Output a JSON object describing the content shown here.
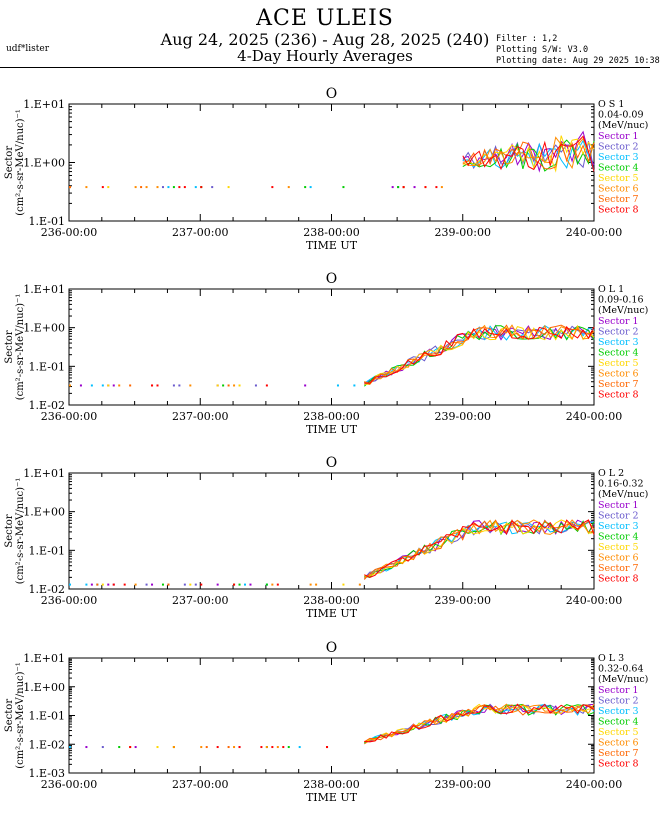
{
  "header": {
    "title": "ACE ULEIS",
    "date_range": "Aug 24, 2025 (236) - Aug 28, 2025 (240)",
    "subtitle": "4-Day Hourly Averages",
    "user": "udf*lister",
    "filter": "Filter : 1,2",
    "software": "Plotting S/W: V3.0",
    "plot_date": "Plotting date: Aug 29 2025 10:38"
  },
  "colors": {
    "sectors": [
      "#9900cc",
      "#6a5acd",
      "#00bfff",
      "#00cc00",
      "#ffd700",
      "#ff8c00",
      "#ff6600",
      "#ff0000"
    ],
    "axis": "#000000"
  },
  "chart_data": [
    {
      "type": "line",
      "title": "O",
      "legend_title": [
        "O S 1",
        "0.04-0.09",
        "(MeV/nuc)"
      ],
      "ylabel": "Sector",
      "ylabel_units": "(cm²-s-sr-MeV/nuc)⁻¹",
      "xlabel": "TIME UT",
      "scale": "log",
      "ylim": [
        0.1,
        10
      ],
      "y_ticks": [
        "1.E-01",
        "1.E+00",
        "1.E+01"
      ],
      "x_ticks": [
        "236-00:00",
        "237-00:00",
        "238-00:00",
        "239-00:00",
        "240-00:00"
      ],
      "xlim": [
        236,
        240
      ],
      "series": [
        {
          "name": "Sector 1",
          "start": 239.0,
          "base": 1.1,
          "peak": 1.5,
          "spread": 0.22,
          "floor": 0.38
        },
        {
          "name": "Sector 2",
          "start": 239.0,
          "base": 1.1,
          "peak": 1.5,
          "spread": 0.22,
          "floor": 0.38
        },
        {
          "name": "Sector 3",
          "start": 239.0,
          "base": 1.1,
          "peak": 1.5,
          "spread": 0.22,
          "floor": 0.38
        },
        {
          "name": "Sector 4",
          "start": 239.0,
          "base": 1.1,
          "peak": 1.5,
          "spread": 0.22,
          "floor": 0.38
        },
        {
          "name": "Sector 5",
          "start": 239.0,
          "base": 1.1,
          "peak": 1.5,
          "spread": 0.22,
          "floor": 0.38
        },
        {
          "name": "Sector 6",
          "start": 239.0,
          "base": 1.1,
          "peak": 1.5,
          "spread": 0.22,
          "floor": 0.38
        },
        {
          "name": "Sector 7",
          "start": 239.0,
          "base": 1.1,
          "peak": 1.5,
          "spread": 0.22,
          "floor": 0.38
        },
        {
          "name": "Sector 8",
          "start": 239.0,
          "base": 1.1,
          "peak": 1.5,
          "spread": 0.22,
          "floor": 0.38
        }
      ]
    },
    {
      "type": "line",
      "title": "O",
      "legend_title": [
        "O L 1",
        "0.09-0.16",
        "(MeV/nuc)"
      ],
      "ylabel": "Sector",
      "ylabel_units": "(cm²-s-sr-MeV/nuc)⁻¹",
      "xlabel": "TIME UT",
      "scale": "log",
      "ylim": [
        0.01,
        10
      ],
      "y_ticks": [
        "1.E-02",
        "1.E-01",
        "1.E+00",
        "1.E+01"
      ],
      "x_ticks": [
        "236-00:00",
        "237-00:00",
        "238-00:00",
        "239-00:00",
        "240-00:00"
      ],
      "xlim": [
        236,
        240
      ],
      "series": [
        {
          "name": "Sector 1",
          "start": 238.25,
          "base": 0.035,
          "peak": 0.75,
          "spread": 0.12,
          "floor": 0.032
        },
        {
          "name": "Sector 2",
          "start": 238.25,
          "base": 0.035,
          "peak": 0.75,
          "spread": 0.12,
          "floor": 0.032
        },
        {
          "name": "Sector 3",
          "start": 238.25,
          "base": 0.035,
          "peak": 0.75,
          "spread": 0.12,
          "floor": 0.032
        },
        {
          "name": "Sector 4",
          "start": 238.25,
          "base": 0.035,
          "peak": 0.75,
          "spread": 0.12,
          "floor": 0.032
        },
        {
          "name": "Sector 5",
          "start": 238.25,
          "base": 0.035,
          "peak": 0.75,
          "spread": 0.12,
          "floor": 0.032
        },
        {
          "name": "Sector 6",
          "start": 238.25,
          "base": 0.035,
          "peak": 0.75,
          "spread": 0.12,
          "floor": 0.032
        },
        {
          "name": "Sector 7",
          "start": 238.25,
          "base": 0.035,
          "peak": 0.75,
          "spread": 0.12,
          "floor": 0.032
        },
        {
          "name": "Sector 8",
          "start": 238.25,
          "base": 0.035,
          "peak": 0.75,
          "spread": 0.12,
          "floor": 0.032
        }
      ]
    },
    {
      "type": "line",
      "title": "O",
      "legend_title": [
        "O L 2",
        "0.16-0.32",
        "(MeV/nuc)"
      ],
      "ylabel": "Sector",
      "ylabel_units": "(cm²-s-sr-MeV/nuc)⁻¹",
      "xlabel": "TIME UT",
      "scale": "log",
      "ylim": [
        0.01,
        10
      ],
      "y_ticks": [
        "1.E-02",
        "1.E-01",
        "1.E+00",
        "1.E+01"
      ],
      "x_ticks": [
        "236-00:00",
        "237-00:00",
        "238-00:00",
        "239-00:00",
        "240-00:00"
      ],
      "xlim": [
        236,
        240
      ],
      "series": [
        {
          "name": "Sector 1",
          "start": 238.25,
          "base": 0.02,
          "peak": 0.4,
          "spread": 0.12,
          "floor": 0.013
        },
        {
          "name": "Sector 2",
          "start": 238.25,
          "base": 0.02,
          "peak": 0.4,
          "spread": 0.12,
          "floor": 0.013
        },
        {
          "name": "Sector 3",
          "start": 238.25,
          "base": 0.02,
          "peak": 0.4,
          "spread": 0.12,
          "floor": 0.013
        },
        {
          "name": "Sector 4",
          "start": 238.25,
          "base": 0.02,
          "peak": 0.4,
          "spread": 0.12,
          "floor": 0.013
        },
        {
          "name": "Sector 5",
          "start": 238.25,
          "base": 0.02,
          "peak": 0.4,
          "spread": 0.12,
          "floor": 0.013
        },
        {
          "name": "Sector 6",
          "start": 238.25,
          "base": 0.02,
          "peak": 0.4,
          "spread": 0.12,
          "floor": 0.013
        },
        {
          "name": "Sector 7",
          "start": 238.25,
          "base": 0.02,
          "peak": 0.4,
          "spread": 0.12,
          "floor": 0.013
        },
        {
          "name": "Sector 8",
          "start": 238.25,
          "base": 0.02,
          "peak": 0.4,
          "spread": 0.12,
          "floor": 0.013
        }
      ]
    },
    {
      "type": "line",
      "title": "O",
      "legend_title": [
        "O L 3",
        "0.32-0.64",
        "(MeV/nuc)"
      ],
      "ylabel": "Sector",
      "ylabel_units": "(cm²-s-sr-MeV/nuc)⁻¹",
      "xlabel": "TIME UT",
      "scale": "log",
      "ylim": [
        0.001,
        10
      ],
      "y_ticks": [
        "1.E-03",
        "1.E-02",
        "1.E-01",
        "1.E+00",
        "1.E+01"
      ],
      "x_ticks": [
        "236-00:00",
        "237-00:00",
        "238-00:00",
        "239-00:00",
        "240-00:00"
      ],
      "xlim": [
        236,
        240
      ],
      "series": [
        {
          "name": "Sector 1",
          "start": 238.25,
          "base": 0.012,
          "peak": 0.16,
          "spread": 0.12,
          "floor": 0.008
        },
        {
          "name": "Sector 2",
          "start": 238.25,
          "base": 0.012,
          "peak": 0.16,
          "spread": 0.12,
          "floor": 0.008
        },
        {
          "name": "Sector 3",
          "start": 238.25,
          "base": 0.012,
          "peak": 0.16,
          "spread": 0.12,
          "floor": 0.008
        },
        {
          "name": "Sector 4",
          "start": 238.25,
          "base": 0.012,
          "peak": 0.16,
          "spread": 0.12,
          "floor": 0.008
        },
        {
          "name": "Sector 5",
          "start": 238.25,
          "base": 0.012,
          "peak": 0.16,
          "spread": 0.12,
          "floor": 0.008
        },
        {
          "name": "Sector 6",
          "start": 238.25,
          "base": 0.012,
          "peak": 0.16,
          "spread": 0.12,
          "floor": 0.008
        },
        {
          "name": "Sector 7",
          "start": 238.25,
          "base": 0.012,
          "peak": 0.16,
          "spread": 0.12,
          "floor": 0.008
        },
        {
          "name": "Sector 8",
          "start": 238.25,
          "base": 0.012,
          "peak": 0.16,
          "spread": 0.12,
          "floor": 0.008
        }
      ]
    }
  ]
}
